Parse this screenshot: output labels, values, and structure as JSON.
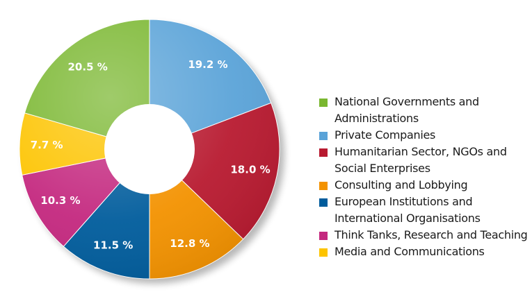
{
  "chart_data": {
    "type": "pie",
    "donut": true,
    "title": "",
    "legend_position": "right",
    "slices": [
      {
        "label": "Private Companies",
        "value": 19.2,
        "text": "19.2 %",
        "color": "#5aa3d8"
      },
      {
        "label": "Humanitarian Sector, NGOs and Social Enterprises",
        "value": 18.0,
        "text": "18.0 %",
        "color": "#b81a30"
      },
      {
        "label": "Consulting and Lobbying",
        "value": 12.8,
        "text": "12.8 %",
        "color": "#f39200"
      },
      {
        "label": "European Institutions and International Organisations",
        "value": 11.5,
        "text": "11.5 %",
        "color": "#005c9c"
      },
      {
        "label": "Think Tanks, Research and Teaching",
        "value": 10.3,
        "text": "10.3 %",
        "color": "#c4287f"
      },
      {
        "label": "Media and Communications",
        "value": 7.7,
        "text": "7.7 %",
        "color": "#fdc400"
      },
      {
        "label": "National Governments and Administrations",
        "value": 20.5,
        "text": "20.5 %",
        "color": "#7ab730"
      }
    ],
    "legend_order": [
      6,
      0,
      1,
      2,
      3,
      4,
      5
    ]
  }
}
